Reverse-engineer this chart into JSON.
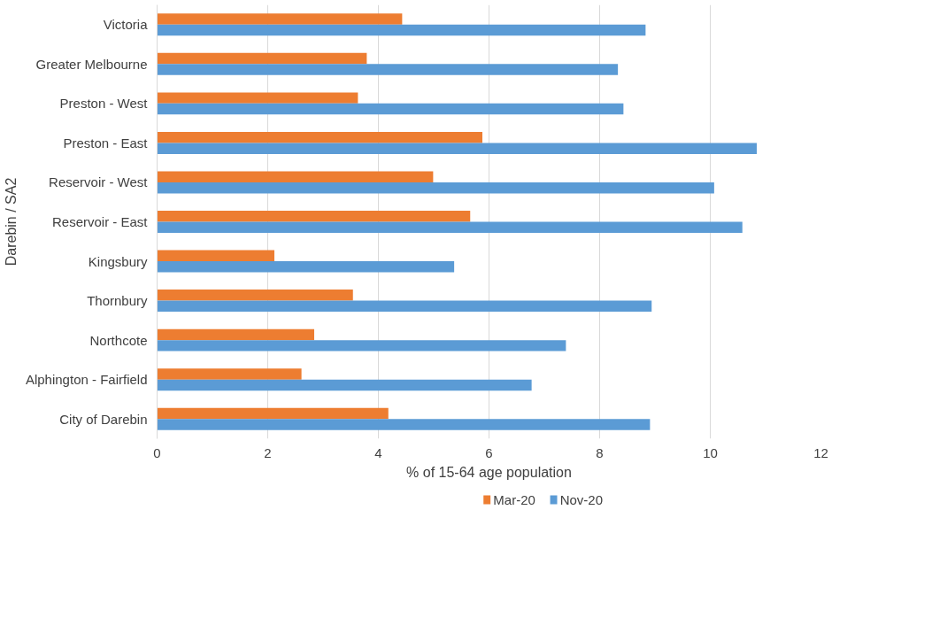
{
  "chart_data": {
    "type": "bar",
    "orientation": "horizontal",
    "ylabel": "Darebin / SA2",
    "xlabel": "% of 15-64 age population",
    "categories": [
      "Victoria",
      "Greater Melbourne",
      "Preston - West",
      "Preston - East",
      "Reservoir - West",
      "Reservoir - East",
      "Kingsbury",
      "Thornbury",
      "Northcote",
      "Alphington - Fairfield",
      "City of Darebin"
    ],
    "series": [
      {
        "name": "Mar-20",
        "color": "#ed7d31",
        "values": [
          4.43,
          3.79,
          3.63,
          5.88,
          4.99,
          5.66,
          2.12,
          3.54,
          2.84,
          2.61,
          4.18
        ]
      },
      {
        "name": "Nov-20",
        "color": "#5b9bd5",
        "values": [
          8.83,
          8.33,
          8.43,
          10.84,
          10.07,
          10.58,
          5.37,
          8.94,
          7.39,
          6.77,
          8.91
        ]
      }
    ],
    "xlim": [
      0,
      12
    ],
    "xticks": [
      0,
      2,
      4,
      6,
      8,
      10,
      12
    ],
    "grid": "x",
    "legend": "bottom"
  }
}
